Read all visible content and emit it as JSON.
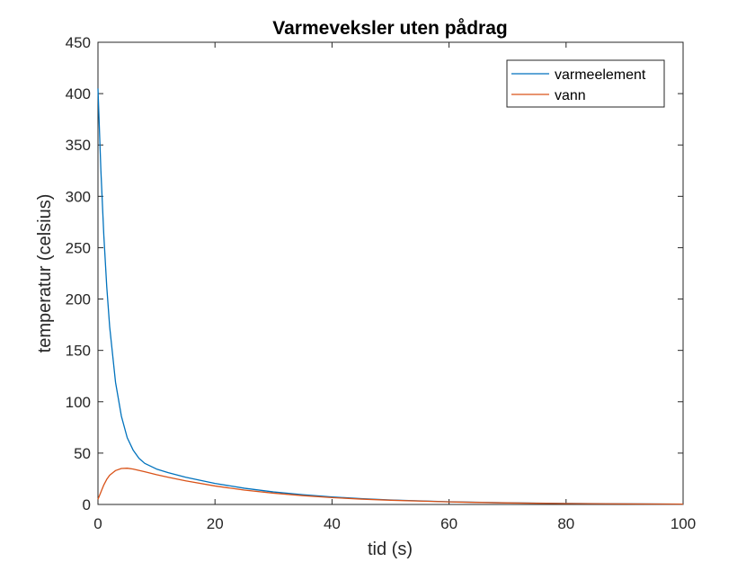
{
  "chart_data": {
    "type": "line",
    "title": "Varmeveksler uten pådrag",
    "xlabel": "tid (s)",
    "ylabel": "temperatur (celsius)",
    "xlim": [
      0,
      100
    ],
    "ylim": [
      0,
      450
    ],
    "x_ticks": [
      "0",
      "20",
      "40",
      "60",
      "80",
      "100"
    ],
    "y_ticks": [
      "0",
      "50",
      "100",
      "150",
      "200",
      "250",
      "300",
      "350",
      "400",
      "450"
    ],
    "grid": false,
    "legend_location": "top-right",
    "series": [
      {
        "name": "varmeelement",
        "color": "#0072BD",
        "x": [
          0,
          0.5,
          1,
          1.5,
          2,
          3,
          4,
          5,
          6,
          7,
          8,
          10,
          12,
          15,
          20,
          25,
          30,
          35,
          40,
          45,
          50,
          60,
          70,
          80,
          90,
          100
        ],
        "y": [
          405,
          325,
          262,
          212,
          173,
          119,
          86,
          65,
          53,
          45,
          40,
          34.5,
          31,
          26.5,
          20.5,
          15.8,
          12.2,
          9.5,
          7.3,
          5.7,
          4.4,
          2.6,
          1.6,
          0.95,
          0.6,
          0.35
        ]
      },
      {
        "name": "vann",
        "color": "#D95319",
        "x": [
          0,
          0.5,
          1,
          1.5,
          2,
          3,
          4,
          5,
          6,
          7,
          8,
          10,
          12,
          15,
          20,
          25,
          30,
          35,
          40,
          45,
          50,
          60,
          70,
          80,
          90,
          100
        ],
        "y": [
          5,
          12,
          19,
          24.5,
          28.5,
          33,
          35,
          35.3,
          34.5,
          33.2,
          31.8,
          29,
          26.5,
          23,
          18,
          14,
          11,
          8.6,
          6.7,
          5.2,
          4.1,
          2.5,
          1.5,
          0.9,
          0.55,
          0.33
        ]
      }
    ]
  }
}
